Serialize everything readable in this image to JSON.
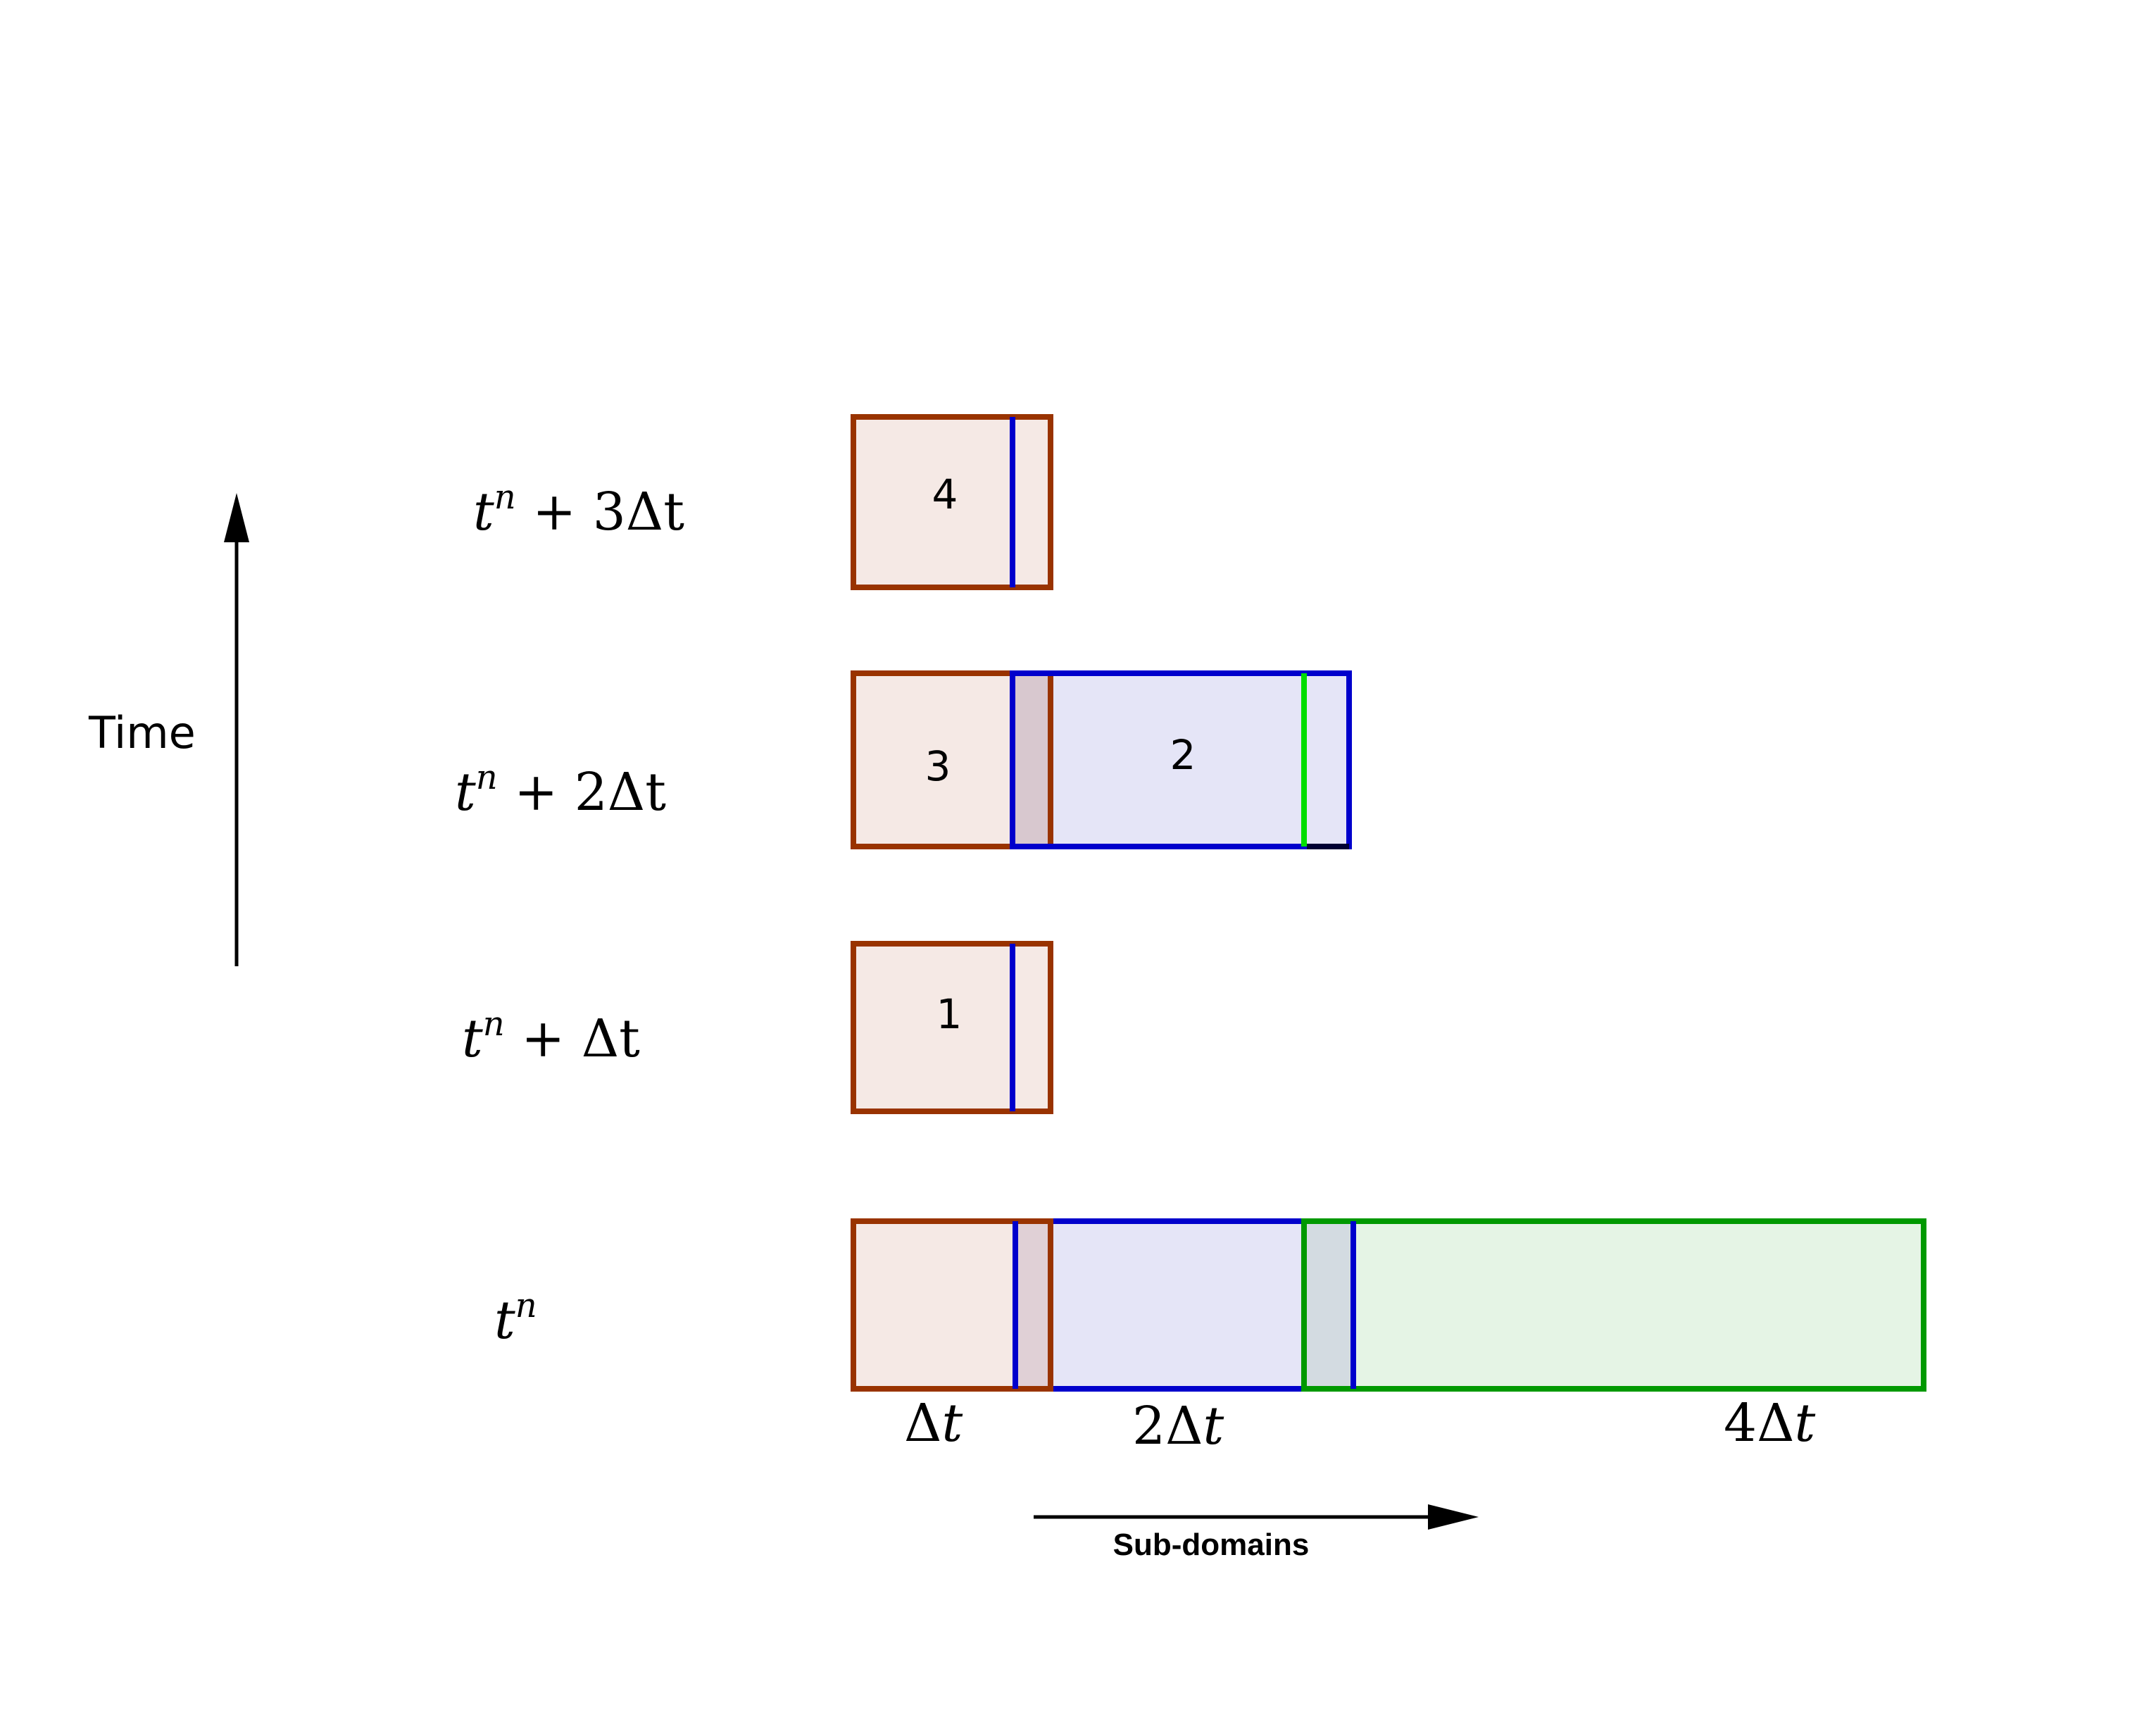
{
  "axes": {
    "time_label": "Time",
    "subdomains_label": "Sub-domains"
  },
  "time_levels": [
    {
      "var": "t",
      "sup": "n",
      "rest": " + 3Δt"
    },
    {
      "var": "t",
      "sup": "n",
      "rest": " + 2Δt"
    },
    {
      "var": "t",
      "sup": "n",
      "rest": " + Δt"
    },
    {
      "var": "t",
      "sup": "n",
      "rest": ""
    }
  ],
  "subdomain_steps": [
    {
      "coef": "",
      "delta": "Δ",
      "var": "t"
    },
    {
      "coef": "2",
      "delta": "Δ",
      "var": "t"
    },
    {
      "coef": "4",
      "delta": "Δ",
      "var": "t"
    }
  ],
  "step_numbers": [
    "4",
    "3",
    "2",
    "1"
  ],
  "colors": {
    "subdomain_1_border": "#993300",
    "subdomain_1_fill": "#f5e9e5",
    "subdomain_2_border": "#0000cc",
    "subdomain_2_fill": "#e5e5f7",
    "subdomain_3_border": "#009900",
    "subdomain_3_fill": "#e5f4e5",
    "overlap_fill": "#d3dbe1",
    "interface_green": "#00dd00"
  }
}
